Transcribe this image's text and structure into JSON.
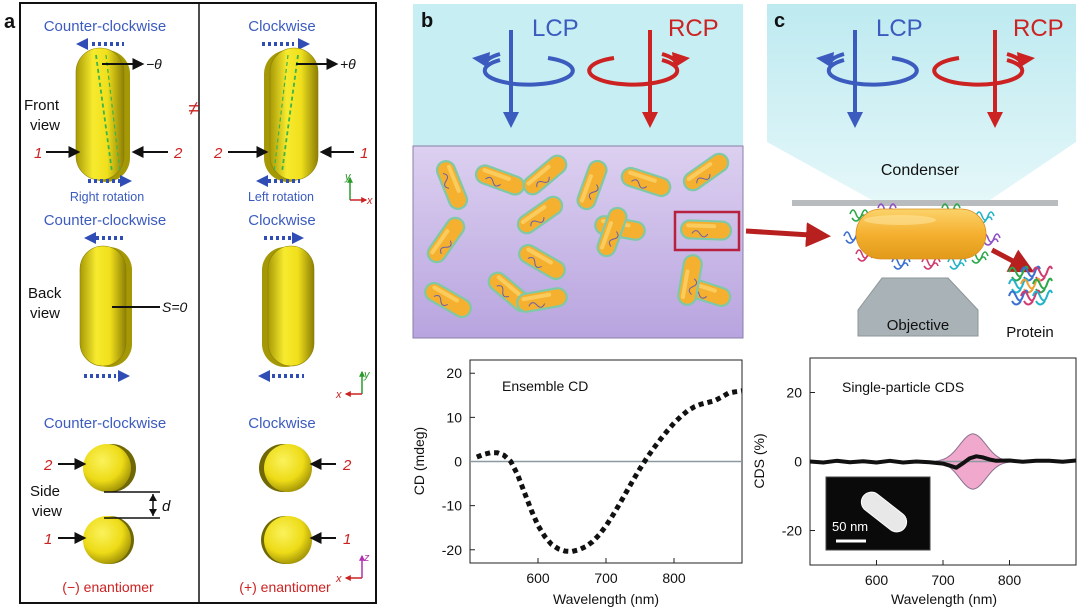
{
  "panel_a": {
    "letter": "a",
    "row1": {
      "left_title": "Counter-clockwise",
      "right_title": "Clockwise",
      "left_angle": "−θ",
      "right_angle": "+θ",
      "view_label_line1": "Front",
      "view_label_line2": "view",
      "left_num_1": "1",
      "left_num_2": "2",
      "right_num_2": "2",
      "right_num_1": "1",
      "not_equal": "≠",
      "left_caption": "Right rotation",
      "right_caption": "Left rotation",
      "axis_v": "y",
      "axis_h": "x"
    },
    "row2": {
      "left_title": "Counter-clockwise",
      "right_title": "Clockwise",
      "view_label_line1": "Back",
      "view_label_line2": "view",
      "s_label": "S=0",
      "axis_v": "y",
      "axis_h": "x"
    },
    "row3": {
      "left_title": "Counter-clockwise",
      "right_title": "Clockwise",
      "view_label_line1": "Side",
      "view_label_line2": "view",
      "d_label": "d",
      "left_num_top": "2",
      "left_num_bottom": "1",
      "right_num_top": "2",
      "right_num_bottom": "1",
      "left_caption": "(−) enantiomer",
      "right_caption": "(+) enantiomer",
      "axis_v": "z",
      "axis_h": "x"
    }
  },
  "panel_b": {
    "letter": "b",
    "lcp": "LCP",
    "rcp": "RCP",
    "chart_title": "Ensemble CD"
  },
  "panel_c": {
    "letter": "c",
    "lcp": "LCP",
    "rcp": "RCP",
    "condenser": "Condenser",
    "objective": "Objective",
    "protein": "Protein",
    "chart_title": "Single-particle CDS",
    "scale_bar": "50 nm"
  },
  "colors": {
    "lcp": "#3b5bbf",
    "rcp": "#cc2222",
    "rod": "#f0e21c",
    "rod_orange": "#f5b336",
    "beam": "#c7eef2",
    "solution": "#c5b3e3",
    "band": "#f0a8cc"
  },
  "chart_data": [
    {
      "type": "line",
      "title": "Ensemble CD",
      "xlabel": "Wavelength (nm)",
      "ylabel": "CD (mdeg)",
      "xlim": [
        500,
        900
      ],
      "ylim": [
        -23,
        23
      ],
      "xticks": [
        600,
        700,
        800
      ],
      "yticks": [
        -20,
        -10,
        0,
        10,
        20
      ],
      "series": [
        {
          "style": "dotted",
          "x": [
            510,
            520,
            530,
            540,
            550,
            560,
            570,
            580,
            590,
            600,
            610,
            620,
            630,
            640,
            650,
            660,
            670,
            680,
            690,
            700,
            710,
            720,
            730,
            740,
            750,
            760,
            770,
            780,
            790,
            800,
            810,
            820,
            830,
            840,
            850,
            860,
            870,
            880,
            890,
            900
          ],
          "y": [
            1,
            1.6,
            2,
            2,
            1.4,
            0,
            -3,
            -7,
            -11,
            -14.5,
            -17,
            -18.8,
            -19.8,
            -20.3,
            -20.4,
            -20,
            -19.3,
            -18.2,
            -16.6,
            -14.6,
            -12.2,
            -9.6,
            -6.9,
            -4.2,
            -1.6,
            0.8,
            3,
            5,
            6.9,
            8.7,
            10.2,
            11.5,
            12.4,
            13,
            13.4,
            13.8,
            14.6,
            15.5,
            15.8,
            16
          ]
        }
      ],
      "reference_lines": [
        0
      ]
    },
    {
      "type": "line",
      "title": "Single-particle CDS",
      "xlabel": "Wavelength (nm)",
      "ylabel": "CDS (%)",
      "xlim": [
        500,
        900
      ],
      "ylim": [
        -30,
        30
      ],
      "xticks": [
        600,
        700,
        800
      ],
      "yticks": [
        -20,
        0,
        20
      ],
      "band_center": 745,
      "band_halfwidth_max": 8,
      "series": [
        {
          "x": [
            500,
            520,
            540,
            560,
            580,
            600,
            620,
            640,
            660,
            680,
            700,
            710,
            720,
            730,
            740,
            750,
            760,
            770,
            780,
            800,
            820,
            840,
            860,
            880,
            900
          ],
          "y": [
            0,
            -0.3,
            0.2,
            -0.2,
            0.1,
            -0.3,
            0.2,
            -0.3,
            0,
            -0.2,
            -0.6,
            -1.2,
            -1.8,
            -0.5,
            0.9,
            1.5,
            1.2,
            0.6,
            0.2,
            0.3,
            -0.1,
            0.2,
            0.2,
            -0.1,
            0.3
          ]
        }
      ],
      "reference_lines": [
        0
      ]
    }
  ]
}
